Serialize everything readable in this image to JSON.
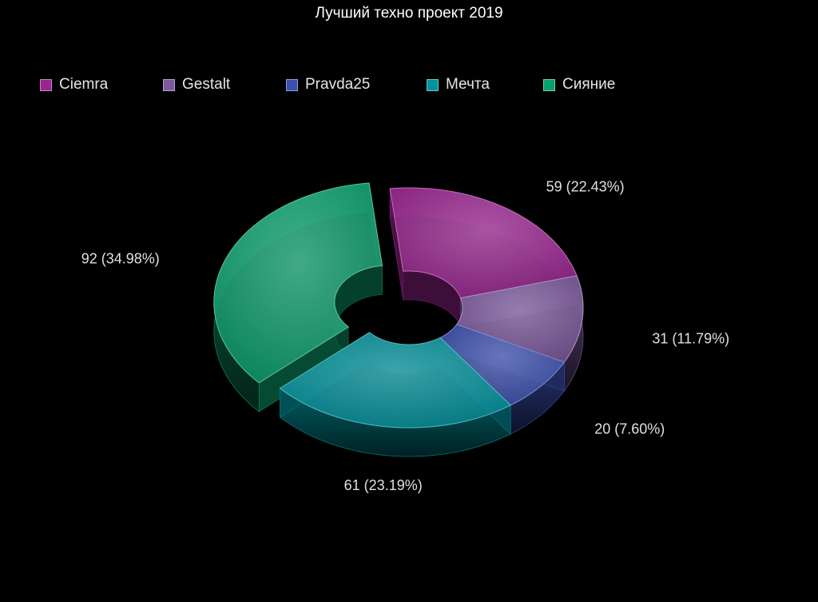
{
  "chart_data": {
    "type": "pie",
    "variant": "3d-donut",
    "title": "Лучший техно проект 2019",
    "legend_position": "top-left",
    "exploded_slice": "Сияние",
    "series": [
      {
        "name": "Ciemra",
        "value": 59,
        "percent": "22.43%",
        "label": "59 (22.43%)",
        "color": "#9B2491"
      },
      {
        "name": "Gestalt",
        "value": 31,
        "percent": "11.79%",
        "label": "31 (11.79%)",
        "color": "#7C5A9E"
      },
      {
        "name": "Pravda25",
        "value": 20,
        "percent": "7.60%",
        "label": "20 (7.60%)",
        "color": "#3B4FAE"
      },
      {
        "name": "Мечта",
        "value": 61,
        "percent": "23.19%",
        "label": "61 (23.19%)",
        "color": "#00929C"
      },
      {
        "name": "Сияние",
        "value": 92,
        "percent": "34.98%",
        "label": "92 (34.98%)",
        "color": "#0AA06E"
      }
    ]
  }
}
